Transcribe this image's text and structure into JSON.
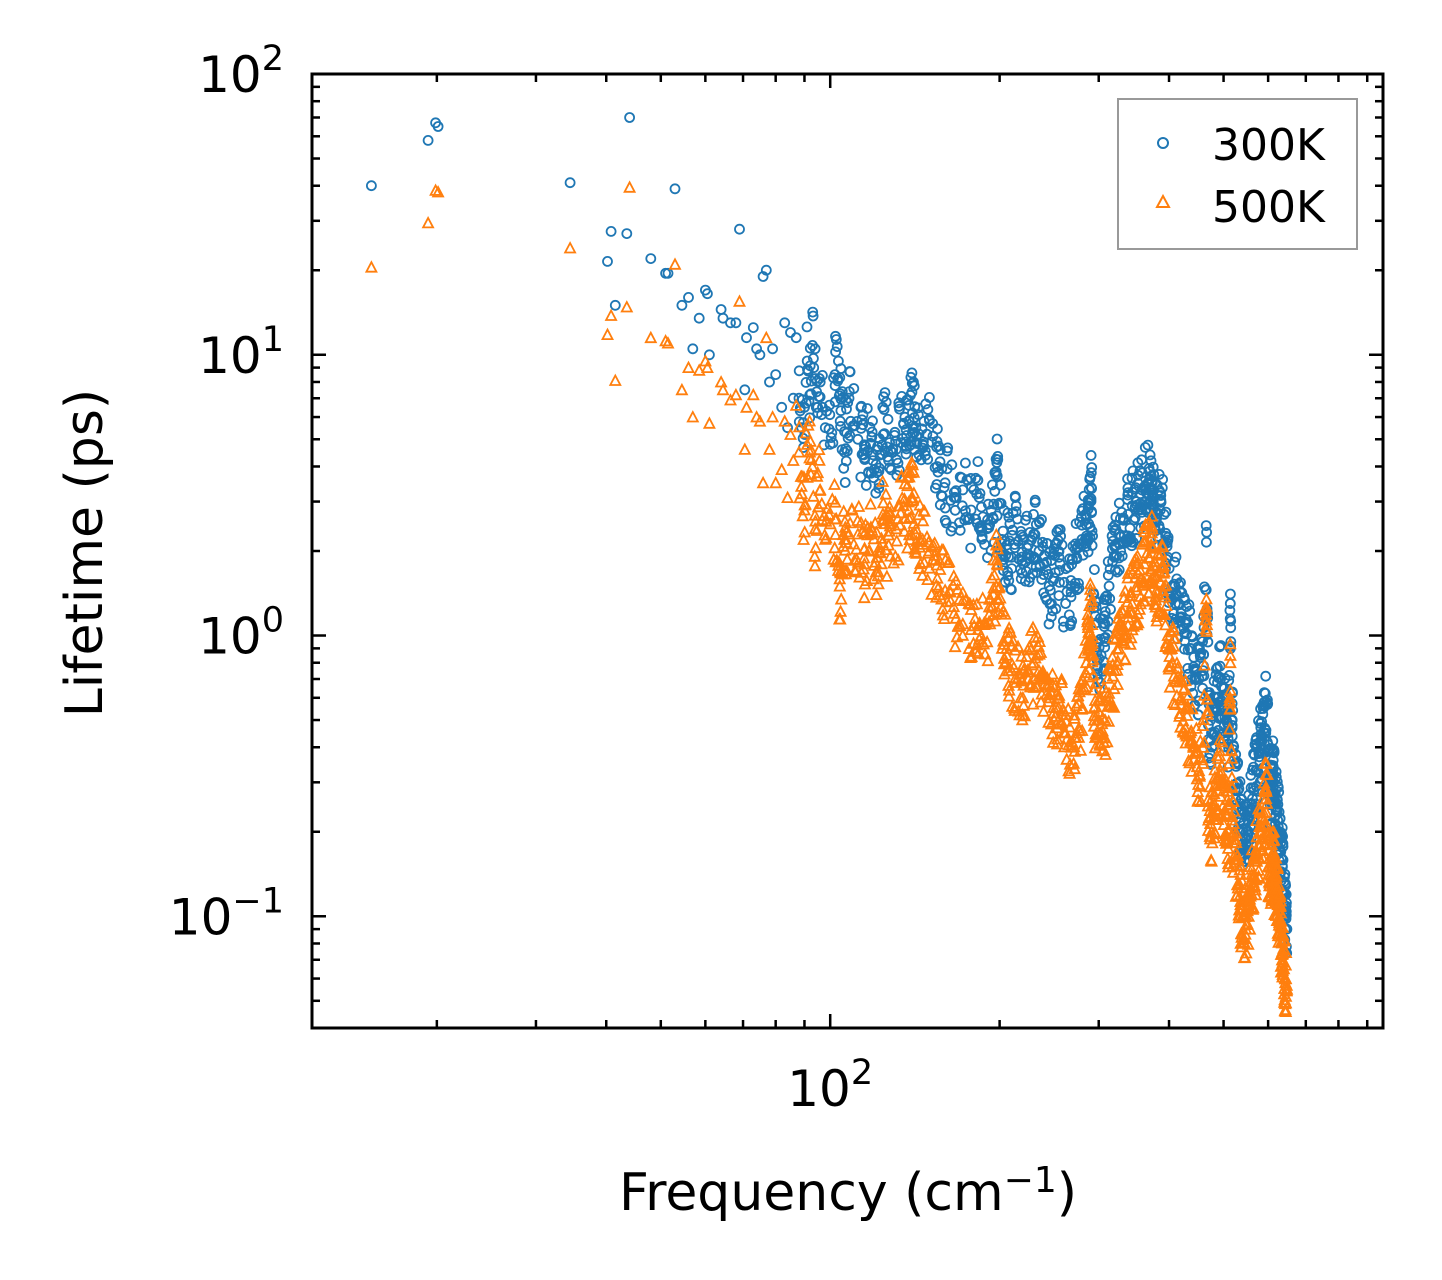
{
  "chart_data": {
    "type": "scatter",
    "title": "",
    "xlabel": "Frequency (cm",
    "xlabel_sup": "−1",
    "xlabel_end": ")",
    "ylabel": "Lifetime (ps)",
    "xscale": "log",
    "yscale": "log",
    "xlim": [
      12,
      960
    ],
    "ylim": [
      0.04,
      100
    ],
    "x_ticks": [
      {
        "value": 100,
        "base": "10",
        "exp": "2"
      }
    ],
    "y_ticks": [
      {
        "value": 100,
        "base": "10",
        "exp": "2"
      },
      {
        "value": 10,
        "base": "10",
        "exp": "1"
      },
      {
        "value": 1,
        "base": "10",
        "exp": "0"
      },
      {
        "value": 0.1,
        "base": "10",
        "exp": "−1"
      }
    ],
    "legend_position": "top-right",
    "series": [
      {
        "name": "300K",
        "marker": "circle",
        "color": "#1f77b4",
        "anchor_points": [
          [
            15.3,
            40
          ],
          [
            19.3,
            58
          ],
          [
            19.9,
            67
          ],
          [
            20.1,
            65
          ],
          [
            34.5,
            41
          ],
          [
            40.2,
            21.5
          ],
          [
            40.8,
            27.5
          ],
          [
            41.5,
            15
          ],
          [
            43.5,
            27
          ],
          [
            44,
            70
          ],
          [
            48,
            22
          ],
          [
            51,
            19.5
          ],
          [
            51.5,
            19.5
          ],
          [
            53,
            39
          ],
          [
            54.5,
            15
          ],
          [
            56,
            16
          ],
          [
            57,
            10.5
          ],
          [
            58.5,
            13.5
          ],
          [
            60,
            17
          ],
          [
            60.5,
            16.5
          ],
          [
            61,
            10
          ],
          [
            64,
            14.5
          ],
          [
            64.5,
            13.5
          ],
          [
            66.5,
            13
          ],
          [
            68,
            13
          ],
          [
            69,
            28
          ],
          [
            70.5,
            7.5
          ],
          [
            71,
            11.5
          ],
          [
            73,
            12.5
          ],
          [
            74,
            10.5
          ],
          [
            75,
            10
          ],
          [
            76,
            19
          ],
          [
            77,
            20
          ],
          [
            78,
            8
          ],
          [
            79,
            10.5
          ],
          [
            80,
            8.5
          ],
          [
            82,
            6.5
          ],
          [
            83,
            13
          ],
          [
            84,
            5.5
          ],
          [
            85,
            12
          ],
          [
            86,
            7
          ],
          [
            87,
            11.5
          ],
          [
            88,
            7
          ],
          [
            89,
            5.5
          ],
          [
            90,
            6.5
          ],
          [
            91,
            9.5
          ],
          [
            92,
            7.2
          ],
          [
            93,
            10.8
          ],
          [
            94,
            10.5
          ],
          [
            95,
            6.5
          ],
          [
            96,
            8
          ],
          [
            98,
            5.5
          ],
          [
            100,
            4.8
          ],
          [
            102,
            8.5
          ],
          [
            104,
            8.3
          ],
          [
            106,
            4.5
          ],
          [
            108,
            7
          ],
          [
            112,
            5
          ],
          [
            115,
            4.6
          ],
          [
            118,
            4.8
          ],
          [
            121,
            3.8
          ],
          [
            124,
            6.5
          ],
          [
            127,
            4.2
          ],
          [
            131,
            4.6
          ],
          [
            135,
            5.7
          ],
          [
            138,
            6.6
          ],
          [
            140,
            6.2
          ],
          [
            142,
            5.5
          ],
          [
            146,
            4.8
          ],
          [
            150,
            5.9
          ],
          [
            155,
            4
          ],
          [
            160,
            3.5
          ],
          [
            166,
            3.1
          ],
          [
            172,
            3.3
          ],
          [
            178,
            2.8
          ],
          [
            184,
            3.1
          ],
          [
            190,
            2.4
          ],
          [
            195,
            2.6
          ],
          [
            198,
            3.7
          ],
          [
            202,
            2.2
          ],
          [
            206,
            2.1
          ],
          [
            210,
            1.9
          ],
          [
            215,
            2.6
          ],
          [
            220,
            1.8
          ],
          [
            225,
            2.1
          ],
          [
            230,
            2.3
          ],
          [
            235,
            2
          ],
          [
            240,
            1.8
          ],
          [
            245,
            1.5
          ],
          [
            250,
            1.6
          ],
          [
            255,
            1.9
          ],
          [
            262,
            1.3
          ],
          [
            268,
            1.5
          ],
          [
            274,
            1.9
          ],
          [
            280,
            2.2
          ],
          [
            285,
            2.7
          ],
          [
            288,
            2.5
          ],
          [
            291,
            3.8
          ],
          [
            294,
            1.4
          ],
          [
            298,
            0.95
          ],
          [
            303,
            0.85
          ],
          [
            308,
            1.1
          ],
          [
            313,
            1.5
          ],
          [
            320,
            1.9
          ],
          [
            326,
            2.3
          ],
          [
            332,
            2.6
          ],
          [
            338,
            2.7
          ],
          [
            344,
            2.9
          ],
          [
            350,
            3
          ],
          [
            356,
            3.2
          ],
          [
            362,
            3.4
          ],
          [
            368,
            3.5
          ],
          [
            372,
            3.7
          ],
          [
            375,
            3
          ],
          [
            380,
            2.6
          ],
          [
            386,
            2.8
          ],
          [
            392,
            2.7
          ],
          [
            398,
            1.9
          ],
          [
            405,
            1.5
          ],
          [
            412,
            1.4
          ],
          [
            420,
            1.2
          ],
          [
            428,
            1.1
          ],
          [
            436,
            0.9
          ],
          [
            444,
            0.75
          ],
          [
            452,
            0.7
          ],
          [
            460,
            0.75
          ],
          [
            466,
            2.15
          ],
          [
            470,
            0.48
          ],
          [
            476,
            0.45
          ],
          [
            482,
            0.55
          ],
          [
            488,
            0.6
          ],
          [
            494,
            0.7
          ],
          [
            500,
            0.55
          ],
          [
            506,
            0.5
          ],
          [
            510,
            0.45
          ],
          [
            514,
            1.3
          ],
          [
            518,
            0.5
          ],
          [
            524,
            0.35
          ],
          [
            530,
            0.28
          ],
          [
            536,
            0.22
          ],
          [
            542,
            0.2
          ],
          [
            548,
            0.18
          ],
          [
            554,
            0.2
          ],
          [
            560,
            0.24
          ],
          [
            566,
            0.28
          ],
          [
            572,
            0.33
          ],
          [
            578,
            0.38
          ],
          [
            584,
            0.42
          ],
          [
            590,
            0.45
          ],
          [
            596,
            0.58
          ],
          [
            602,
            0.3
          ],
          [
            606,
            0.28
          ],
          [
            610,
            0.3
          ],
          [
            613,
            0.32
          ],
          [
            616,
            0.26
          ],
          [
            620,
            0.24
          ],
          [
            624,
            0.22
          ],
          [
            628,
            0.2
          ],
          [
            632,
            0.17
          ],
          [
            636,
            0.15
          ],
          [
            640,
            0.12
          ],
          [
            644,
            0.1
          ],
          [
            648,
            0.09
          ]
        ]
      },
      {
        "name": "500K",
        "marker": "triangle",
        "color": "#ff7f0e",
        "anchor_points": [
          [
            15.3,
            20.5
          ],
          [
            19.3,
            29.5
          ],
          [
            19.9,
            38.5
          ],
          [
            20.1,
            38
          ],
          [
            34.5,
            24
          ],
          [
            40.2,
            11.8
          ],
          [
            40.8,
            13.8
          ],
          [
            41.5,
            8.1
          ],
          [
            43.5,
            14.8
          ],
          [
            44,
            39.5
          ],
          [
            48,
            11.5
          ],
          [
            51,
            11.2
          ],
          [
            51.5,
            11
          ],
          [
            53,
            21
          ],
          [
            54.5,
            7.5
          ],
          [
            56,
            9
          ],
          [
            57,
            6
          ],
          [
            58.5,
            8.8
          ],
          [
            60,
            9.5
          ],
          [
            60.5,
            9
          ],
          [
            61,
            5.7
          ],
          [
            64,
            8
          ],
          [
            64.5,
            7.5
          ],
          [
            66.5,
            6.9
          ],
          [
            68,
            7.2
          ],
          [
            69,
            15.5
          ],
          [
            70.5,
            4.6
          ],
          [
            71,
            6.5
          ],
          [
            73,
            7.2
          ],
          [
            74,
            6
          ],
          [
            75,
            5.8
          ],
          [
            76,
            3.5
          ],
          [
            77,
            11.5
          ],
          [
            78,
            4.6
          ],
          [
            79,
            6
          ],
          [
            80,
            3.5
          ],
          [
            82,
            3.9
          ],
          [
            83,
            5.8
          ],
          [
            84,
            3.1
          ],
          [
            85,
            5.2
          ],
          [
            86,
            4.2
          ],
          [
            87,
            6.6
          ],
          [
            88,
            4.5
          ],
          [
            89,
            3.2
          ],
          [
            90,
            2.8
          ],
          [
            91,
            4.8
          ],
          [
            92,
            4.5
          ],
          [
            93,
            4
          ],
          [
            94,
            2.4
          ],
          [
            95,
            3.8
          ],
          [
            96,
            3.3
          ],
          [
            98,
            2.2
          ],
          [
            100,
            2.5
          ],
          [
            102,
            2.6
          ],
          [
            104,
            1.5
          ],
          [
            106,
            2.2
          ],
          [
            108,
            2.3
          ],
          [
            112,
            2.3
          ],
          [
            115,
            1.8
          ],
          [
            118,
            2.3
          ],
          [
            121,
            1.9
          ],
          [
            124,
            2.6
          ],
          [
            127,
            2.1
          ],
          [
            131,
            2.4
          ],
          [
            135,
            2.9
          ],
          [
            138,
            2.8
          ],
          [
            140,
            3.1
          ],
          [
            142,
            2.4
          ],
          [
            146,
            2.2
          ],
          [
            150,
            2
          ],
          [
            155,
            1.6
          ],
          [
            160,
            1.45
          ],
          [
            166,
            1.2
          ],
          [
            172,
            1.1
          ],
          [
            178,
            1.05
          ],
          [
            184,
            1.1
          ],
          [
            190,
            0.95
          ],
          [
            195,
            1.4
          ],
          [
            198,
            1.8
          ],
          [
            202,
            0.9
          ],
          [
            206,
            0.85
          ],
          [
            210,
            0.75
          ],
          [
            215,
            0.7
          ],
          [
            220,
            0.6
          ],
          [
            225,
            0.7
          ],
          [
            230,
            0.8
          ],
          [
            235,
            0.75
          ],
          [
            240,
            0.7
          ],
          [
            245,
            0.6
          ],
          [
            250,
            0.5
          ],
          [
            255,
            0.6
          ],
          [
            262,
            0.45
          ],
          [
            268,
            0.4
          ],
          [
            274,
            0.45
          ],
          [
            280,
            0.55
          ],
          [
            285,
            0.8
          ],
          [
            288,
            0.9
          ],
          [
            291,
            1.3
          ],
          [
            294,
            0.55
          ],
          [
            298,
            0.5
          ],
          [
            303,
            0.45
          ],
          [
            308,
            0.5
          ],
          [
            313,
            0.6
          ],
          [
            320,
            0.75
          ],
          [
            326,
            0.9
          ],
          [
            332,
            1
          ],
          [
            338,
            1.2
          ],
          [
            344,
            1.3
          ],
          [
            350,
            1.45
          ],
          [
            356,
            1.6
          ],
          [
            362,
            1.8
          ],
          [
            368,
            1.9
          ],
          [
            372,
            2.1
          ],
          [
            375,
            1.6
          ],
          [
            380,
            1.45
          ],
          [
            386,
            1.55
          ],
          [
            392,
            1.5
          ],
          [
            398,
            1
          ],
          [
            405,
            0.8
          ],
          [
            412,
            0.7
          ],
          [
            420,
            0.6
          ],
          [
            428,
            0.55
          ],
          [
            436,
            0.45
          ],
          [
            444,
            0.38
          ],
          [
            452,
            0.33
          ],
          [
            460,
            0.35
          ],
          [
            466,
            1.35
          ],
          [
            470,
            0.22
          ],
          [
            476,
            0.2
          ],
          [
            482,
            0.25
          ],
          [
            488,
            0.28
          ],
          [
            494,
            0.33
          ],
          [
            500,
            0.28
          ],
          [
            506,
            0.23
          ],
          [
            510,
            0.2
          ],
          [
            514,
            0.8
          ],
          [
            518,
            0.22
          ],
          [
            524,
            0.16
          ],
          [
            530,
            0.13
          ],
          [
            536,
            0.11
          ],
          [
            542,
            0.1
          ],
          [
            548,
            0.09
          ],
          [
            554,
            0.1
          ],
          [
            560,
            0.12
          ],
          [
            566,
            0.14
          ],
          [
            572,
            0.16
          ],
          [
            578,
            0.18
          ],
          [
            584,
            0.2
          ],
          [
            590,
            0.22
          ],
          [
            596,
            0.35
          ],
          [
            602,
            0.15
          ],
          [
            606,
            0.14
          ],
          [
            610,
            0.15
          ],
          [
            613,
            0.16
          ],
          [
            616,
            0.13
          ],
          [
            620,
            0.12
          ],
          [
            624,
            0.11
          ],
          [
            628,
            0.095
          ],
          [
            632,
            0.085
          ],
          [
            636,
            0.075
          ],
          [
            640,
            0.065
          ],
          [
            644,
            0.058
          ],
          [
            648,
            0.055
          ]
        ]
      }
    ]
  }
}
